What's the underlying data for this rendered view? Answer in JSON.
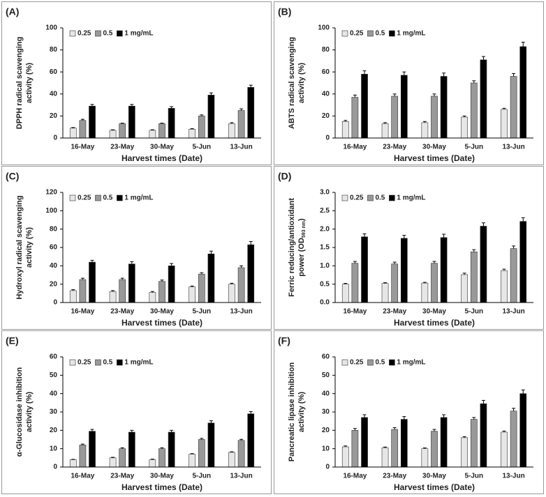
{
  "chart_data": [
    {
      "type": "bar",
      "label": "(A)",
      "ylabel": [
        "DPPH radical scavenging",
        "activity (%)"
      ],
      "xlabel": "Harvest times (Date)",
      "categories": [
        "16-May",
        "23-May",
        "30-May",
        "5-Jun",
        "13-Jun"
      ],
      "series": [
        {
          "name": "0.25",
          "color": "#e6e6e6",
          "values": [
            9,
            7,
            7,
            8,
            13
          ],
          "errors": [
            0.5,
            0.5,
            0.5,
            0.5,
            1
          ]
        },
        {
          "name": "0.5",
          "color": "#999999",
          "values": [
            16,
            13,
            13,
            20,
            25
          ],
          "errors": [
            1,
            0.5,
            0.5,
            1,
            1.5
          ]
        },
        {
          "name": "1 mg/mL",
          "color": "#000000",
          "values": [
            29,
            29,
            27,
            39,
            46
          ],
          "errors": [
            1.5,
            1.5,
            1.5,
            2,
            2
          ]
        }
      ],
      "ylim": [
        0,
        100
      ],
      "yticks": [
        0,
        20,
        40,
        60,
        80,
        100
      ]
    },
    {
      "type": "bar",
      "label": "(B)",
      "ylabel": [
        "ABTS radical scavenging",
        "activity (%)"
      ],
      "xlabel": "Harvest times (Date)",
      "categories": [
        "16-May",
        "23-May",
        "30-May",
        "5-Jun",
        "13-Jun"
      ],
      "series": [
        {
          "name": "0.25",
          "color": "#e6e6e6",
          "values": [
            15,
            13,
            14,
            19,
            26
          ],
          "errors": [
            1,
            1,
            1,
            1,
            1
          ]
        },
        {
          "name": "0.5",
          "color": "#999999",
          "values": [
            37,
            38,
            38,
            50,
            56
          ],
          "errors": [
            2,
            2,
            2,
            2,
            2.5
          ]
        },
        {
          "name": "1 mg/mL",
          "color": "#000000",
          "values": [
            58,
            57,
            56,
            71,
            83
          ],
          "errors": [
            3,
            3,
            3,
            3,
            4
          ]
        }
      ],
      "ylim": [
        0,
        100
      ],
      "yticks": [
        0,
        20,
        40,
        60,
        80,
        100
      ]
    },
    {
      "type": "bar",
      "label": "(C)",
      "ylabel": [
        "Hydroxyl radical scavenging",
        "activity (%)"
      ],
      "xlabel": "Harvest times (Date)",
      "categories": [
        "16-May",
        "23-May",
        "30-May",
        "5-Jun",
        "13-Jun"
      ],
      "series": [
        {
          "name": "0.25",
          "color": "#e6e6e6",
          "values": [
            13,
            12,
            11,
            17,
            20
          ],
          "errors": [
            1,
            1,
            1,
            1,
            1
          ]
        },
        {
          "name": "0.5",
          "color": "#999999",
          "values": [
            25,
            25,
            23,
            31,
            38
          ],
          "errors": [
            1.5,
            1.5,
            1.5,
            1.5,
            2
          ]
        },
        {
          "name": "1 mg/mL",
          "color": "#000000",
          "values": [
            44,
            42,
            40,
            53,
            63
          ],
          "errors": [
            2,
            2.5,
            2.5,
            3,
            3.5
          ]
        }
      ],
      "ylim": [
        0,
        120
      ],
      "yticks": [
        0,
        20,
        40,
        60,
        80,
        100,
        120
      ]
    },
    {
      "type": "bar",
      "label": "(D)",
      "ylabel": [
        "Ferric reducing/antioxidant",
        "power (OD"
      ],
      "ylabel_sub": "593 nm",
      "ylabel_tail": ")",
      "xlabel": "Harvest times (Date)",
      "categories": [
        "16-May",
        "23-May",
        "30-May",
        "5-Jun",
        "13-Jun"
      ],
      "series": [
        {
          "name": "0.25",
          "color": "#e6e6e6",
          "values": [
            0.5,
            0.52,
            0.53,
            0.76,
            0.87
          ],
          "errors": [
            0.02,
            0.02,
            0.02,
            0.04,
            0.04
          ]
        },
        {
          "name": "0.5",
          "color": "#999999",
          "values": [
            1.07,
            1.05,
            1.07,
            1.38,
            1.47
          ],
          "errors": [
            0.05,
            0.05,
            0.05,
            0.06,
            0.07
          ]
        },
        {
          "name": "1 mg/mL",
          "color": "#000000",
          "values": [
            1.79,
            1.75,
            1.77,
            2.08,
            2.21
          ],
          "errors": [
            0.08,
            0.08,
            0.09,
            0.09,
            0.1
          ]
        }
      ],
      "ylim": [
        0,
        3
      ],
      "yticks": [
        {
          "value": 0,
          "label": "0.0"
        },
        0.5,
        {
          "value": 1,
          "label": "1.0"
        },
        1.5,
        {
          "value": 2,
          "label": "2.0"
        },
        2.5,
        {
          "value": 3,
          "label": "3.0"
        }
      ]
    },
    {
      "type": "bar",
      "label": "(E)",
      "ylabel": [
        "α-Glucosidase inhibition",
        "activity (%)"
      ],
      "xlabel": "Harvest times (Date)",
      "categories": [
        "16-May",
        "23-May",
        "30-May",
        "5-Jun",
        "13-Jun"
      ],
      "series": [
        {
          "name": "0.25",
          "color": "#e6e6e6",
          "values": [
            4,
            5,
            4,
            7,
            8
          ],
          "errors": [
            0.2,
            0.3,
            0.3,
            0.3,
            0.3
          ]
        },
        {
          "name": "0.5",
          "color": "#999999",
          "values": [
            12,
            10,
            10,
            15,
            14.5
          ],
          "errors": [
            0.5,
            0.5,
            0.5,
            0.6,
            0.6
          ]
        },
        {
          "name": "1 mg/mL",
          "color": "#000000",
          "values": [
            19.5,
            19,
            19,
            24,
            29
          ],
          "errors": [
            1,
            1,
            1,
            1.2,
            1.2
          ]
        }
      ],
      "ylim": [
        0,
        60
      ],
      "yticks": [
        0,
        10,
        20,
        30,
        40,
        50,
        60
      ]
    },
    {
      "type": "bar",
      "label": "(F)",
      "ylabel": [
        "Pancreatic lipase inhibition",
        "activity (%)"
      ],
      "xlabel": "Harvest times (Date)",
      "categories": [
        "16-May",
        "23-May",
        "30-May",
        "5-Jun",
        "13-Jun"
      ],
      "series": [
        {
          "name": "0.25",
          "color": "#e6e6e6",
          "values": [
            11,
            10.5,
            10,
            16,
            19
          ],
          "errors": [
            0.5,
            0.4,
            0.4,
            0.5,
            0.6
          ]
        },
        {
          "name": "0.5",
          "color": "#999999",
          "values": [
            20,
            20.5,
            19.5,
            26,
            30.5
          ],
          "errors": [
            1,
            1,
            1,
            1,
            1.5
          ]
        },
        {
          "name": "1 mg/mL",
          "color": "#000000",
          "values": [
            27,
            26,
            27,
            34.5,
            40
          ],
          "errors": [
            1.5,
            1.5,
            1.5,
            1.8,
            2
          ]
        }
      ],
      "ylim": [
        0,
        60
      ],
      "yticks": [
        0,
        10,
        20,
        30,
        40,
        50,
        60
      ]
    }
  ]
}
